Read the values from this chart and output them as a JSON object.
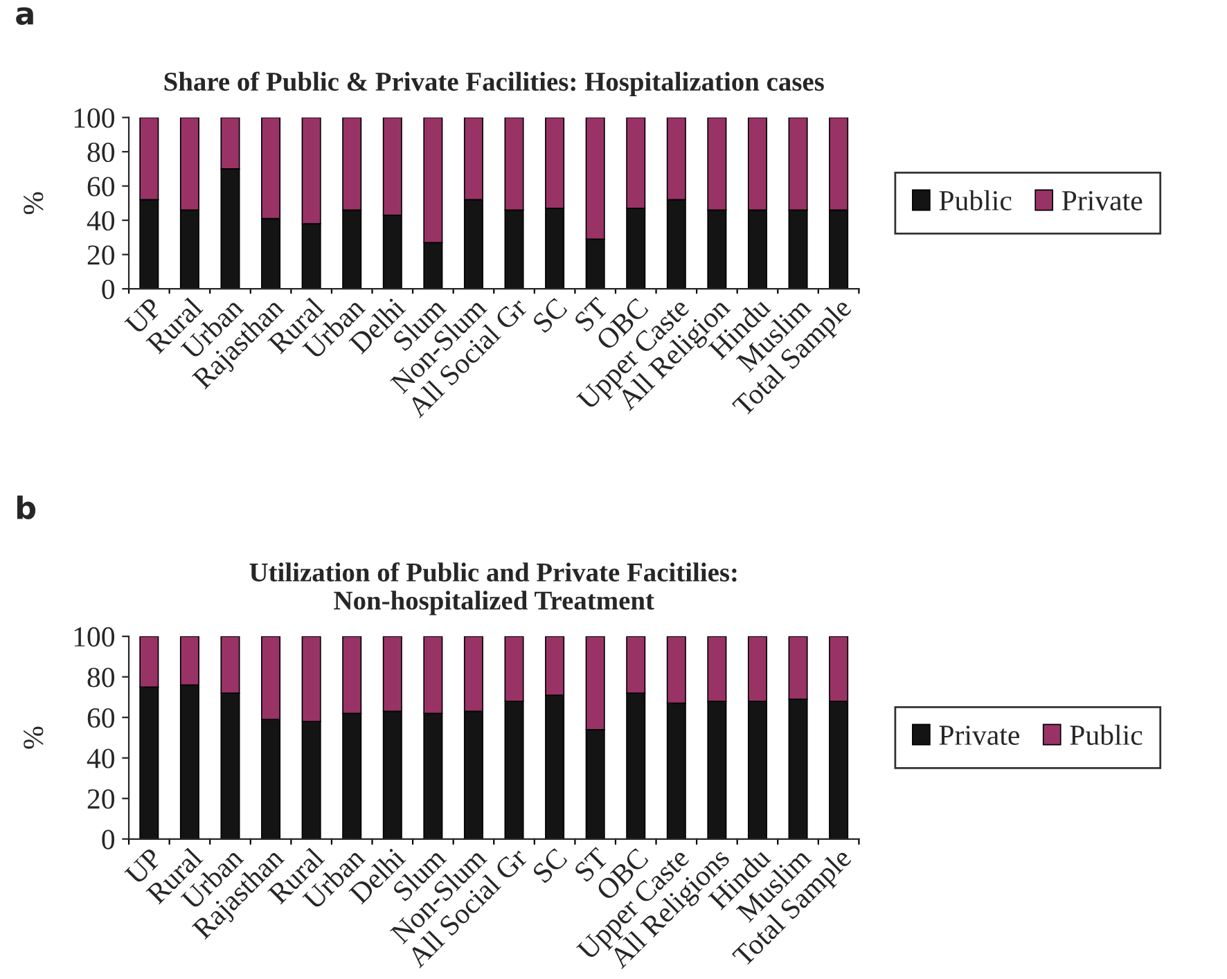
{
  "chart_data": [
    {
      "type": "bar",
      "stacked": true,
      "title": "Share of Public & Private Facilities: Hospitalization cases",
      "ylabel": "%",
      "annotations": [
        "a"
      ],
      "categories": [
        "UP",
        "Rural",
        "Urban",
        "Rajasthan",
        "Rural",
        "Urban",
        "Delhi",
        "Slum",
        "Non-Slum",
        "All Social Gr",
        "SC",
        "ST",
        "OBC",
        "Upper Caste",
        "All Religion",
        "Hindu",
        "Muslim",
        "Total Sample"
      ],
      "series": [
        {
          "name": "Public",
          "color": "#141414",
          "values": [
            52,
            46,
            70,
            41,
            38,
            46,
            43,
            27,
            52,
            46,
            47,
            29,
            47,
            52,
            46,
            46,
            46,
            46
          ]
        },
        {
          "name": "Private",
          "color": "#993366",
          "values": [
            48,
            54,
            30,
            59,
            62,
            54,
            57,
            73,
            48,
            54,
            53,
            71,
            53,
            48,
            54,
            54,
            54,
            54
          ]
        }
      ],
      "ylim": [
        0,
        100
      ],
      "yticks": [
        0,
        20,
        40,
        60,
        80,
        100
      ],
      "legend": "right"
    },
    {
      "type": "bar",
      "stacked": true,
      "title": "Utilization of Public and Private Facitilies:\nNon-hospitalized Treatment",
      "ylabel": "%",
      "annotations": [
        "b"
      ],
      "categories": [
        "UP",
        "Rural",
        "Urban",
        "Rajasthan",
        "Rural",
        "Urban",
        "Delhi",
        "Slum",
        "Non-Slum",
        "All Social Gr",
        "SC",
        "ST",
        "OBC",
        "Upper Caste",
        "All Religions",
        "Hindu",
        "Muslim",
        "Total Sample"
      ],
      "series": [
        {
          "name": "Private",
          "color": "#141414",
          "values": [
            75,
            76,
            72,
            59,
            58,
            62,
            63,
            62,
            63,
            68,
            71,
            54,
            72,
            67,
            68,
            68,
            69,
            68
          ]
        },
        {
          "name": "Public",
          "color": "#993366",
          "values": [
            25,
            24,
            28,
            41,
            42,
            38,
            37,
            38,
            37,
            32,
            29,
            46,
            28,
            33,
            32,
            32,
            31,
            32
          ]
        }
      ],
      "ylim": [
        0,
        100
      ],
      "yticks": [
        0,
        20,
        40,
        60,
        80,
        100
      ],
      "legend": "right"
    }
  ]
}
